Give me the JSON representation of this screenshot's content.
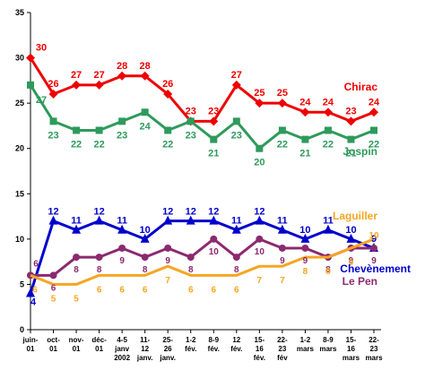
{
  "chart_data": {
    "type": "line",
    "ylim": [
      0,
      35
    ],
    "yticks": [
      0,
      5,
      10,
      15,
      20,
      25,
      30,
      35
    ],
    "grid": false,
    "x_tick_labels": [
      [
        "juin-",
        "01"
      ],
      [
        "oct-",
        "01"
      ],
      [
        "nov-",
        "01"
      ],
      [
        "déc-",
        "01"
      ],
      [
        "4-5",
        "janv",
        "2002"
      ],
      [
        "11-",
        "12",
        "janv."
      ],
      [
        "25-",
        "26",
        "janv."
      ],
      [
        "1-2",
        "fév."
      ],
      [
        "8-9",
        "fév."
      ],
      [
        "12",
        "fév."
      ],
      [
        "15-",
        "16",
        "fév."
      ],
      [
        "22-",
        "23",
        "fév"
      ],
      [
        "1-2",
        "mars"
      ],
      [
        "8-9",
        "mars"
      ],
      [
        "15-",
        "16",
        "mars"
      ],
      [
        "22-",
        "23",
        "mars"
      ]
    ],
    "series": [
      {
        "name": "Chirac",
        "color": "#ee0000",
        "marker": "diamond",
        "values": [
          30,
          26,
          27,
          27,
          28,
          28,
          26,
          23,
          23,
          27,
          25,
          25,
          24,
          24,
          23,
          24
        ]
      },
      {
        "name": "Jospin",
        "color": "#2e9a5c",
        "marker": "square",
        "values": [
          27,
          23,
          22,
          22,
          23,
          24,
          22,
          23,
          21,
          23,
          20,
          22,
          21,
          22,
          21,
          22
        ]
      },
      {
        "name": "Chevènement",
        "color": "#0000cc",
        "marker": "triangle",
        "values": [
          4,
          12,
          11,
          12,
          11,
          10,
          12,
          12,
          12,
          11,
          12,
          11,
          10,
          11,
          10,
          9
        ]
      },
      {
        "name": "Le Pen",
        "color": "#8b2a6e",
        "marker": "circle",
        "values": [
          6,
          6,
          8,
          8,
          9,
          8,
          9,
          8,
          10,
          8,
          10,
          9,
          9,
          8,
          9,
          9
        ]
      },
      {
        "name": "Laguiller",
        "color": "#f5a623",
        "marker": "none",
        "values": [
          6,
          5,
          5,
          6,
          6,
          6,
          7,
          6,
          6,
          6,
          7,
          7,
          8,
          8,
          9,
          10
        ]
      }
    ]
  }
}
